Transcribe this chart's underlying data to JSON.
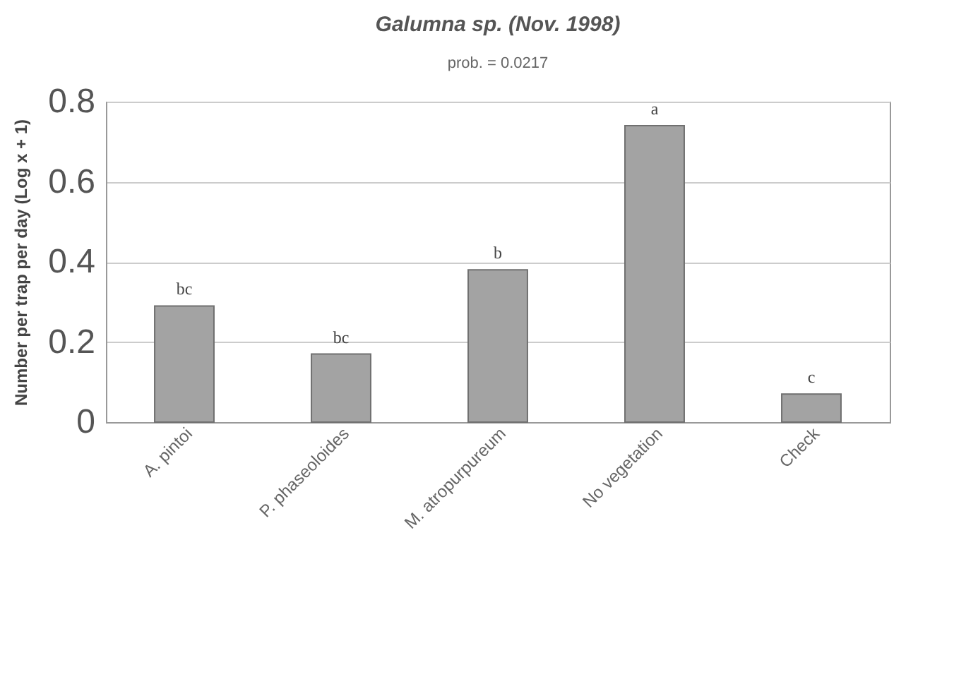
{
  "chart_data": {
    "type": "bar",
    "title": "Galumna sp. (Nov. 1998)",
    "subtitle": "prob. = 0.0217",
    "ylabel": "Number per trap per day (Log x + 1)",
    "categories": [
      "A. pintoi",
      "P. phaseoloides",
      "M. atropurpureum",
      "No vegetation",
      "Check"
    ],
    "values": [
      0.29,
      0.17,
      0.38,
      0.74,
      0.07
    ],
    "color": "#a3a3a3",
    "ylim": [
      0,
      0.8
    ],
    "yticks": [
      0,
      0.2,
      0.4,
      0.6,
      0.8
    ],
    "grid": "y",
    "annotations": [
      {
        "text": "bc",
        "x": "A. pintoi",
        "y": 0.29
      },
      {
        "text": "bc",
        "x": "P. phaseoloides",
        "y": 0.17
      },
      {
        "text": "b",
        "x": "M. atropurpureum",
        "y": 0.38
      },
      {
        "text": "a",
        "x": "No vegetation",
        "y": 0.74
      },
      {
        "text": "c",
        "x": "Check",
        "y": 0.07
      }
    ]
  }
}
